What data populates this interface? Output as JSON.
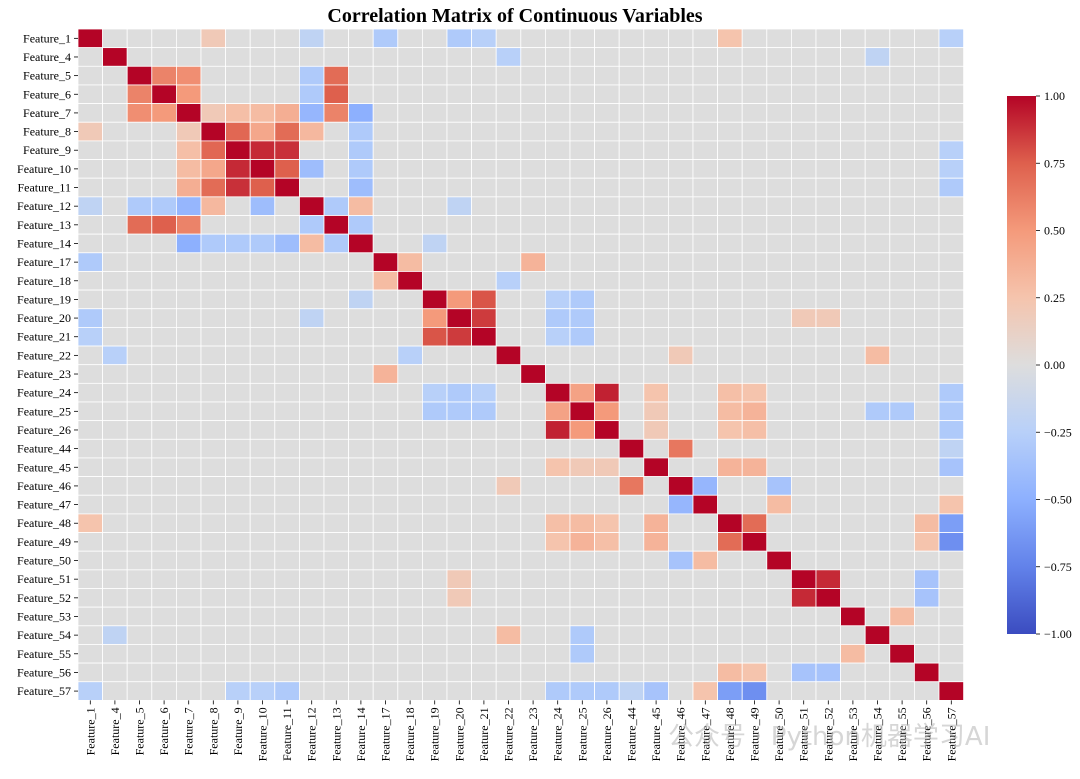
{
  "chart_data": {
    "type": "heatmap",
    "title": "Correlation Matrix of Continuous Variables",
    "labels": [
      "Feature_1",
      "Feature_4",
      "Feature_5",
      "Feature_6",
      "Feature_7",
      "Feature_8",
      "Feature_9",
      "Feature_10",
      "Feature_11",
      "Feature_12",
      "Feature_13",
      "Feature_14",
      "Feature_17",
      "Feature_18",
      "Feature_19",
      "Feature_20",
      "Feature_21",
      "Feature_22",
      "Feature_23",
      "Feature_24",
      "Feature_25",
      "Feature_26",
      "Feature_44",
      "Feature_45",
      "Feature_46",
      "Feature_47",
      "Feature_48",
      "Feature_49",
      "Feature_50",
      "Feature_51",
      "Feature_52",
      "Feature_53",
      "Feature_54",
      "Feature_55",
      "Feature_56",
      "Feature_57"
    ],
    "colormap": "coolwarm",
    "vmin": -1.0,
    "vmax": 1.0,
    "colorbar_ticks": [
      "1.00",
      "0.75",
      "0.50",
      "0.25",
      "0.00",
      "−0.25",
      "−0.50",
      "−0.75",
      "−1.00"
    ],
    "colorbar_tick_values": [
      1.0,
      0.75,
      0.5,
      0.25,
      0.0,
      -0.25,
      -0.5,
      -0.75,
      -1.0
    ],
    "default_value": 0.0,
    "strong_pairs": [
      [
        "Feature_5",
        "Feature_6",
        0.6
      ],
      [
        "Feature_5",
        "Feature_7",
        0.55
      ],
      [
        "Feature_6",
        "Feature_7",
        0.5
      ],
      [
        "Feature_5",
        "Feature_13",
        0.7
      ],
      [
        "Feature_6",
        "Feature_13",
        0.75
      ],
      [
        "Feature_7",
        "Feature_13",
        0.6
      ],
      [
        "Feature_8",
        "Feature_9",
        0.72
      ],
      [
        "Feature_8",
        "Feature_10",
        0.42
      ],
      [
        "Feature_8",
        "Feature_11",
        0.7
      ],
      [
        "Feature_9",
        "Feature_10",
        0.9
      ],
      [
        "Feature_9",
        "Feature_11",
        0.88
      ],
      [
        "Feature_10",
        "Feature_11",
        0.75
      ],
      [
        "Feature_7",
        "Feature_8",
        0.2
      ],
      [
        "Feature_7",
        "Feature_9",
        0.28
      ],
      [
        "Feature_7",
        "Feature_10",
        0.3
      ],
      [
        "Feature_7",
        "Feature_11",
        0.38
      ],
      [
        "Feature_8",
        "Feature_12",
        0.32
      ],
      [
        "Feature_12",
        "Feature_14",
        0.3
      ],
      [
        "Feature_17",
        "Feature_18",
        0.3
      ],
      [
        "Feature_17",
        "Feature_23",
        0.35
      ],
      [
        "Feature_19",
        "Feature_20",
        0.5
      ],
      [
        "Feature_19",
        "Feature_21",
        0.78
      ],
      [
        "Feature_20",
        "Feature_21",
        0.85
      ],
      [
        "Feature_24",
        "Feature_25",
        0.45
      ],
      [
        "Feature_24",
        "Feature_26",
        0.92
      ],
      [
        "Feature_25",
        "Feature_26",
        0.5
      ],
      [
        "Feature_44",
        "Feature_46",
        0.65
      ],
      [
        "Feature_48",
        "Feature_49",
        0.7
      ],
      [
        "Feature_51",
        "Feature_52",
        0.9
      ],
      [
        "Feature_45",
        "Feature_48",
        0.35
      ],
      [
        "Feature_45",
        "Feature_49",
        0.35
      ],
      [
        "Feature_22",
        "Feature_54",
        0.3
      ],
      [
        "Feature_46",
        "Feature_22",
        0.2
      ],
      [
        "Feature_53",
        "Feature_55",
        0.3
      ],
      [
        "Feature_48",
        "Feature_56",
        0.3
      ],
      [
        "Feature_49",
        "Feature_56",
        0.25
      ],
      [
        "Feature_24",
        "Feature_48",
        0.28
      ],
      [
        "Feature_24",
        "Feature_49",
        0.25
      ],
      [
        "Feature_25",
        "Feature_48",
        0.3
      ],
      [
        "Feature_25",
        "Feature_49",
        0.35
      ],
      [
        "Feature_26",
        "Feature_48",
        0.25
      ],
      [
        "Feature_26",
        "Feature_49",
        0.28
      ],
      [
        "Feature_24",
        "Feature_45",
        0.25
      ],
      [
        "Feature_25",
        "Feature_45",
        0.2
      ],
      [
        "Feature_26",
        "Feature_45",
        0.2
      ],
      [
        "Feature_47",
        "Feature_50",
        0.3
      ],
      [
        "Feature_47",
        "Feature_57",
        0.25
      ],
      [
        "Feature_20",
        "Feature_51",
        0.2
      ],
      [
        "Feature_20",
        "Feature_52",
        0.2
      ],
      [
        "Feature_1",
        "Feature_8",
        0.2
      ],
      [
        "Feature_1",
        "Feature_48",
        0.25
      ],
      [
        "Feature_12",
        "Feature_5",
        -0.3
      ],
      [
        "Feature_12",
        "Feature_6",
        -0.3
      ],
      [
        "Feature_12",
        "Feature_7",
        -0.45
      ],
      [
        "Feature_12",
        "Feature_10",
        -0.4
      ],
      [
        "Feature_12",
        "Feature_13",
        -0.3
      ],
      [
        "Feature_14",
        "Feature_7",
        -0.5
      ],
      [
        "Feature_14",
        "Feature_8",
        -0.3
      ],
      [
        "Feature_14",
        "Feature_9",
        -0.3
      ],
      [
        "Feature_14",
        "Feature_10",
        -0.3
      ],
      [
        "Feature_14",
        "Feature_11",
        -0.4
      ],
      [
        "Feature_14",
        "Feature_13",
        -0.3
      ],
      [
        "Feature_1",
        "Feature_17",
        -0.3
      ],
      [
        "Feature_1",
        "Feature_20",
        -0.3
      ],
      [
        "Feature_1",
        "Feature_21",
        -0.25
      ],
      [
        "Feature_1",
        "Feature_12",
        -0.2
      ],
      [
        "Feature_19",
        "Feature_24",
        -0.25
      ],
      [
        "Feature_19",
        "Feature_25",
        -0.3
      ],
      [
        "Feature_20",
        "Feature_24",
        -0.3
      ],
      [
        "Feature_20",
        "Feature_25",
        -0.3
      ],
      [
        "Feature_21",
        "Feature_24",
        -0.25
      ],
      [
        "Feature_21",
        "Feature_25",
        -0.3
      ],
      [
        "Feature_46",
        "Feature_47",
        -0.45
      ],
      [
        "Feature_46",
        "Feature_50",
        -0.35
      ],
      [
        "Feature_48",
        "Feature_57",
        -0.6
      ],
      [
        "Feature_49",
        "Feature_57",
        -0.68
      ],
      [
        "Feature_51",
        "Feature_56",
        -0.35
      ],
      [
        "Feature_52",
        "Feature_56",
        -0.35
      ],
      [
        "Feature_4",
        "Feature_22",
        -0.25
      ],
      [
        "Feature_54",
        "Feature_25",
        -0.3
      ],
      [
        "Feature_54",
        "Feature_4",
        -0.2
      ],
      [
        "Feature_1",
        "Feature_57",
        -0.25
      ],
      [
        "Feature_45",
        "Feature_57",
        -0.35
      ],
      [
        "Feature_44",
        "Feature_57",
        -0.2
      ],
      [
        "Feature_24",
        "Feature_57",
        -0.3
      ],
      [
        "Feature_25",
        "Feature_57",
        -0.3
      ],
      [
        "Feature_26",
        "Feature_57",
        -0.3
      ],
      [
        "Feature_9",
        "Feature_57",
        -0.25
      ],
      [
        "Feature_10",
        "Feature_57",
        -0.25
      ],
      [
        "Feature_11",
        "Feature_57",
        -0.3
      ],
      [
        "Feature_12",
        "Feature_20",
        -0.2
      ],
      [
        "Feature_14",
        "Feature_19",
        -0.2
      ],
      [
        "Feature_22",
        "Feature_18",
        -0.25
      ],
      [
        "Feature_25",
        "Feature_55",
        -0.3
      ]
    ]
  },
  "watermark": "公众号 · Python机器学习AI"
}
